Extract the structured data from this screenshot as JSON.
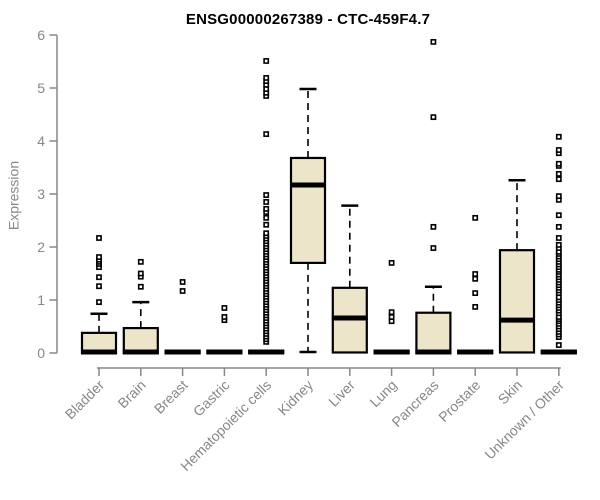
{
  "chart_data": {
    "type": "boxplot",
    "title": "ENSG00000267389 - CTC-459F4.7",
    "ylabel": "Expression",
    "ylim": [
      0,
      6
    ],
    "yticks": [
      0,
      1,
      2,
      3,
      4,
      5,
      6
    ],
    "grid": "off",
    "legend": "none",
    "colors": {
      "box_fill": "#ECE5C9",
      "box_stroke": "#000000",
      "median": "#000000",
      "outlier": "#000000",
      "axis": "#878787",
      "title": "#000000"
    },
    "categories": [
      {
        "label": "Bladder",
        "q1": 0,
        "median": 0.02,
        "q3": 0.38,
        "whisker_low": 0,
        "whisker_high": 0.74,
        "outliers": [
          0.96,
          1.26,
          1.43,
          1.62,
          1.68,
          1.72,
          1.76,
          1.81,
          2.17
        ]
      },
      {
        "label": "Brain",
        "q1": 0,
        "median": 0.02,
        "q3": 0.47,
        "whisker_low": 0,
        "whisker_high": 0.96,
        "outliers": [
          1.25,
          1.44,
          1.5,
          1.72
        ]
      },
      {
        "label": "Breast",
        "q1": 0,
        "median": 0.02,
        "q3": 0.04,
        "whisker_low": 0,
        "whisker_high": 0.04,
        "outliers": [
          1.17,
          1.34
        ]
      },
      {
        "label": "Gastric",
        "q1": 0,
        "median": 0.02,
        "q3": 0.04,
        "whisker_low": 0,
        "whisker_high": 0.04,
        "outliers": [
          0.62,
          0.68,
          0.85
        ]
      },
      {
        "label": "Hematopoietic cells",
        "q1": 0,
        "median": 0.02,
        "q3": 0.04,
        "whisker_low": 0,
        "whisker_high": 0.04,
        "outliers": [
          0.21,
          0.26,
          0.31,
          0.36,
          0.41,
          0.46,
          0.51,
          0.56,
          0.61,
          0.66,
          0.71,
          0.76,
          0.81,
          0.86,
          0.91,
          0.96,
          1.01,
          1.06,
          1.11,
          1.16,
          1.21,
          1.26,
          1.31,
          1.36,
          1.41,
          1.46,
          1.51,
          1.56,
          1.61,
          1.66,
          1.71,
          1.76,
          1.81,
          1.86,
          1.91,
          1.96,
          2.01,
          2.06,
          2.11,
          2.16,
          2.21,
          2.26,
          2.42,
          2.55,
          2.66,
          2.72,
          2.85,
          2.98,
          4.13,
          4.85,
          4.91,
          4.98,
          5.06,
          5.13,
          5.19,
          5.51
        ]
      },
      {
        "label": "Kidney",
        "q1": 1.7,
        "median": 3.17,
        "q3": 3.68,
        "whisker_low": 0.02,
        "whisker_high": 4.98,
        "outliers": []
      },
      {
        "label": "Liver",
        "q1": 0.01,
        "median": 0.66,
        "q3": 1.23,
        "whisker_low": 0.01,
        "whisker_high": 2.78,
        "outliers": []
      },
      {
        "label": "Lung",
        "q1": 0,
        "median": 0.02,
        "q3": 0.04,
        "whisker_low": 0,
        "whisker_high": 0.04,
        "outliers": [
          0.6,
          0.68,
          0.77,
          1.7
        ]
      },
      {
        "label": "Pancreas",
        "q1": 0,
        "median": 0.02,
        "q3": 0.76,
        "whisker_low": 0,
        "whisker_high": 1.25,
        "outliers": [
          1.98,
          2.38,
          4.45,
          5.87
        ]
      },
      {
        "label": "Prostate",
        "q1": 0,
        "median": 0.02,
        "q3": 0.04,
        "whisker_low": 0,
        "whisker_high": 0.04,
        "outliers": [
          0.87,
          1.13,
          1.4,
          1.49,
          2.55
        ]
      },
      {
        "label": "Skin",
        "q1": 0.01,
        "median": 0.62,
        "q3": 1.94,
        "whisker_low": 0.01,
        "whisker_high": 3.26,
        "outliers": []
      },
      {
        "label": "Unknown / Other",
        "q1": 0,
        "median": 0.02,
        "q3": 0.04,
        "whisker_low": 0,
        "whisker_high": 0.04,
        "outliers": [
          0.15,
          0.3,
          0.35,
          0.4,
          0.45,
          0.5,
          0.55,
          0.6,
          0.64,
          0.68,
          0.75,
          0.8,
          0.85,
          0.9,
          0.95,
          1.0,
          1.05,
          1.13,
          1.18,
          1.23,
          1.28,
          1.33,
          1.38,
          1.43,
          1.48,
          1.53,
          1.57,
          1.62,
          1.67,
          1.72,
          1.77,
          1.82,
          1.87,
          1.91,
          1.98,
          2.04,
          2.17,
          2.38,
          2.6,
          2.89,
          2.96,
          3.28,
          3.38,
          3.53,
          3.57,
          3.77,
          3.83,
          4.08
        ]
      }
    ]
  }
}
